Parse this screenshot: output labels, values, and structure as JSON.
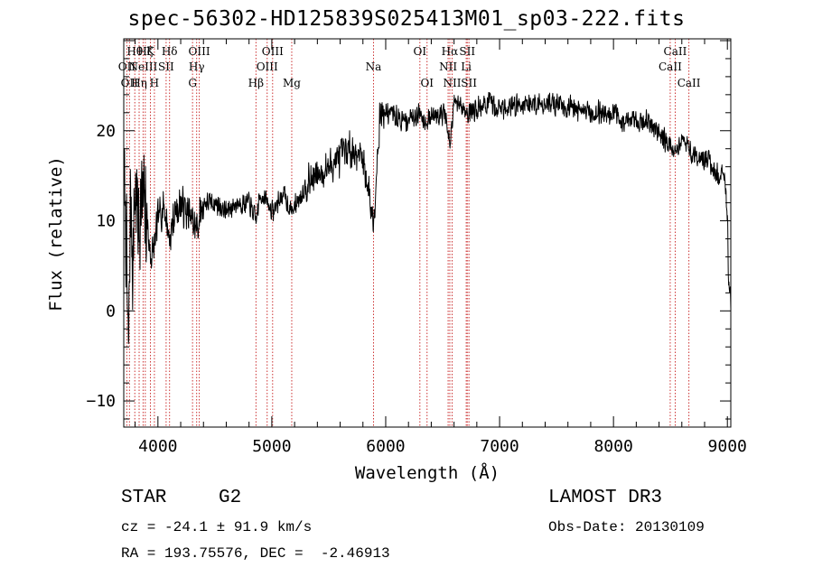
{
  "title": "spec-56302-HD125839S025413M01_sp03-222.fits",
  "chart_data": {
    "type": "line",
    "title": "spec-56302-HD125839S025413M01_sp03-222.fits",
    "xlabel": "Wavelength (Å)",
    "ylabel": "Flux (relative)",
    "xlim": [
      3700,
      9030
    ],
    "ylim": [
      -12.9,
      30.2
    ],
    "xticks": [
      4000,
      5000,
      6000,
      7000,
      8000,
      9000
    ],
    "yticks": [
      -10,
      0,
      10,
      20
    ],
    "grid": false,
    "spectrum_seed": 7,
    "spectrum_points": 2200,
    "x": [
      3700,
      3720,
      3740,
      3760,
      3780,
      3800,
      3830,
      3860,
      3900,
      3933,
      3969,
      4000,
      4050,
      4102,
      4150,
      4200,
      4250,
      4300,
      4340,
      4400,
      4500,
      4600,
      4700,
      4800,
      4861,
      4900,
      4959,
      5007,
      5100,
      5175,
      5300,
      5400,
      5500,
      5600,
      5700,
      5800,
      5893,
      5950,
      6050,
      6150,
      6300,
      6363,
      6450,
      6520,
      6563,
      6600,
      6650,
      6717,
      6800,
      6900,
      7000,
      7200,
      7500,
      7800,
      8000,
      8100,
      8300,
      8400,
      8498,
      8542,
      8600,
      8662,
      8750,
      8850,
      8900,
      8950,
      8980,
      9000,
      9010,
      9020,
      9030
    ],
    "y": [
      16,
      9,
      -6,
      13,
      5,
      14,
      10,
      12,
      11,
      6,
      7,
      10,
      12,
      8,
      11,
      12,
      11,
      10,
      9,
      12,
      12,
      11,
      12,
      12,
      10,
      13,
      12,
      11,
      13,
      11,
      14,
      15,
      16,
      17,
      18,
      17,
      10,
      22,
      22,
      21,
      22,
      21,
      22,
      22,
      18,
      23,
      23,
      22,
      22.5,
      23,
      22.5,
      23,
      23,
      22,
      22,
      21,
      21,
      20,
      18,
      17.5,
      19,
      18,
      17,
      16.5,
      15,
      15,
      14,
      11,
      4,
      2,
      1
    ],
    "noise": [
      {
        "from": 3700,
        "to": 3900,
        "amp": 7.5
      },
      {
        "from": 3900,
        "to": 4400,
        "amp": 2.6
      },
      {
        "from": 4400,
        "to": 5300,
        "amp": 1.4
      },
      {
        "from": 5300,
        "to": 6000,
        "amp": 2.3
      },
      {
        "from": 6000,
        "to": 9030,
        "amp": 1.5
      }
    ],
    "lines": [
      {
        "wave": 3727,
        "label": "OII",
        "row": 1
      },
      {
        "wave": 3750,
        "label": "OII",
        "row": 2
      },
      {
        "wave": 3797,
        "label": "Hθ",
        "row": 0
      },
      {
        "wave": 3835,
        "label": "Hη",
        "row": 2
      },
      {
        "wave": 3870,
        "label": "NeIII",
        "row": 1
      },
      {
        "wave": 3889,
        "label": "Hζ",
        "row": 0
      },
      {
        "wave": 3934,
        "label": "K",
        "row": 0
      },
      {
        "wave": 3969,
        "label": "H",
        "row": 2
      },
      {
        "wave": 4072,
        "label": "SII",
        "row": 1
      },
      {
        "wave": 4102,
        "label": "Hδ",
        "row": 0
      },
      {
        "wave": 4304,
        "label": "G",
        "row": 2
      },
      {
        "wave": 4340,
        "label": "Hγ",
        "row": 1
      },
      {
        "wave": 4363,
        "label": "OIII",
        "row": 0
      },
      {
        "wave": 4861,
        "label": "Hβ",
        "row": 2
      },
      {
        "wave": 4959,
        "label": "OIII",
        "row": 1
      },
      {
        "wave": 5007,
        "label": "OIII",
        "row": 0
      },
      {
        "wave": 5175,
        "label": "Mg",
        "row": 2
      },
      {
        "wave": 5893,
        "label": "Na",
        "row": 1
      },
      {
        "wave": 6300,
        "label": "OI",
        "row": 0
      },
      {
        "wave": 6363,
        "label": "OI",
        "row": 2
      },
      {
        "wave": 6548,
        "label": "NII",
        "row": 1
      },
      {
        "wave": 6563,
        "label": "Hα",
        "row": 0
      },
      {
        "wave": 6583,
        "label": "NII",
        "row": 2
      },
      {
        "wave": 6707,
        "label": "Li",
        "row": 1
      },
      {
        "wave": 6716,
        "label": "SII",
        "row": 0
      },
      {
        "wave": 6731,
        "label": "SII",
        "row": 2
      },
      {
        "wave": 8498,
        "label": "CaII",
        "row": 1
      },
      {
        "wave": 8542,
        "label": "CaII",
        "row": 0
      },
      {
        "wave": 8662,
        "label": "CaII",
        "row": 2
      }
    ]
  },
  "info": {
    "class": "STAR",
    "subclass": "G2",
    "survey": "LAMOST DR3",
    "cz": "cz = -24.1 ± 91.9 km/s",
    "obsdate": "Obs-Date: 20130109",
    "radec": "RA = 193.75576, DEC =  -2.46913"
  },
  "colors": {
    "line_marker": "#cc3333",
    "spectrum": "#000000",
    "axis": "#000000"
  }
}
